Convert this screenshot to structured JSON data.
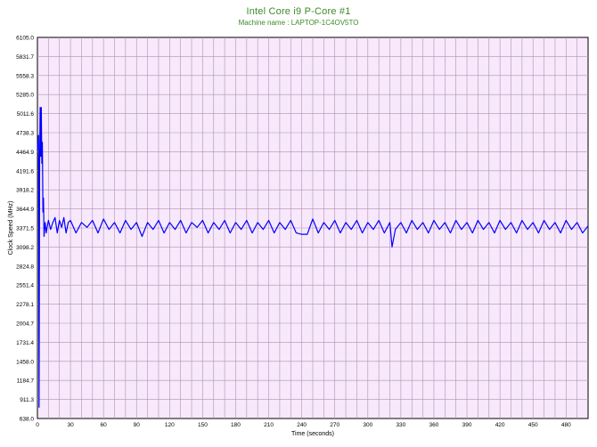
{
  "chart_data": {
    "type": "line",
    "title": "Intel Core i9 P-Core #1",
    "subtitle": "Machine name : LAPTOP-1C4OV5TO",
    "xlabel": "Time (seconds)",
    "ylabel": "Clock Speed (MHz)",
    "xlim": [
      0,
      500
    ],
    "ylim": [
      638.0,
      6105.0
    ],
    "x_ticks": [
      0,
      30,
      60,
      90,
      120,
      150,
      180,
      210,
      240,
      270,
      300,
      330,
      360,
      390,
      420,
      450,
      480
    ],
    "x_tick_labels": [
      "0",
      "30",
      "60",
      "90",
      "120",
      "150",
      "180",
      "210",
      "240",
      "270",
      "300",
      "330",
      "360",
      "390",
      "420",
      "450",
      "480"
    ],
    "y_ticks": [
      638.0,
      911.3,
      1184.7,
      1458.0,
      1731.4,
      2004.7,
      2278.1,
      2551.4,
      2824.8,
      3098.2,
      3371.5,
      3644.9,
      3918.2,
      4191.6,
      4464.9,
      4738.3,
      5011.6,
      5285.0,
      5558.3,
      5831.7,
      6105.0
    ],
    "y_tick_labels": [
      "638.0",
      "911.3",
      "1184.7",
      "1458.0",
      "1731.4",
      "2004.7",
      "2278.1",
      "2551.4",
      "2824.8",
      "3098.2",
      "3371.5",
      "3644.9",
      "3918.2",
      "4191.6",
      "4464.9",
      "4738.3",
      "5011.6",
      "5285.0",
      "5558.3",
      "5831.7",
      "6105.0"
    ],
    "grid": true,
    "series": [
      {
        "color": "#0000ff",
        "x": [
          0,
          1,
          1.5,
          2,
          2.5,
          3,
          3.5,
          4,
          4.5,
          5,
          5.5,
          6,
          7,
          8,
          9,
          10,
          12,
          14,
          16,
          18,
          20,
          22,
          24,
          26,
          28,
          30,
          35,
          40,
          45,
          50,
          55,
          60,
          65,
          70,
          75,
          80,
          85,
          90,
          95,
          100,
          105,
          110,
          115,
          120,
          125,
          130,
          135,
          140,
          145,
          150,
          155,
          160,
          165,
          170,
          175,
          180,
          185,
          190,
          195,
          200,
          205,
          210,
          215,
          220,
          225,
          230,
          235,
          240,
          245,
          250,
          255,
          260,
          265,
          270,
          275,
          280,
          285,
          290,
          295,
          300,
          305,
          310,
          315,
          320,
          322,
          325,
          330,
          335,
          340,
          345,
          350,
          355,
          360,
          365,
          370,
          375,
          380,
          385,
          390,
          395,
          400,
          405,
          410,
          415,
          420,
          425,
          430,
          435,
          440,
          445,
          450,
          455,
          460,
          465,
          470,
          475,
          480,
          485,
          490,
          495,
          500
        ],
        "y": [
          4500,
          4700,
          800,
          4300,
          5100,
          4400,
          5100,
          4300,
          4600,
          3600,
          3800,
          3250,
          3450,
          3300,
          3400,
          3480,
          3350,
          3450,
          3520,
          3300,
          3480,
          3380,
          3520,
          3300,
          3450,
          3480,
          3300,
          3450,
          3380,
          3480,
          3300,
          3500,
          3350,
          3450,
          3300,
          3480,
          3350,
          3450,
          3250,
          3450,
          3350,
          3480,
          3300,
          3450,
          3350,
          3480,
          3300,
          3450,
          3380,
          3480,
          3300,
          3450,
          3350,
          3480,
          3300,
          3450,
          3350,
          3480,
          3300,
          3450,
          3350,
          3480,
          3300,
          3450,
          3350,
          3480,
          3300,
          3280,
          3280,
          3500,
          3300,
          3450,
          3350,
          3480,
          3300,
          3450,
          3350,
          3480,
          3300,
          3450,
          3350,
          3480,
          3300,
          3450,
          3100,
          3350,
          3450,
          3300,
          3480,
          3350,
          3450,
          3300,
          3480,
          3350,
          3450,
          3300,
          3480,
          3350,
          3450,
          3300,
          3480,
          3350,
          3450,
          3300,
          3480,
          3350,
          3450,
          3300,
          3480,
          3350,
          3450,
          3300,
          3480,
          3350,
          3450,
          3300,
          3480,
          3350,
          3450,
          3300,
          3400
        ]
      }
    ]
  },
  "colors": {
    "plot_bg": "#f7e8fb",
    "grid": "#b490b4",
    "line": "#0000ff",
    "title": "#3c8a28"
  }
}
